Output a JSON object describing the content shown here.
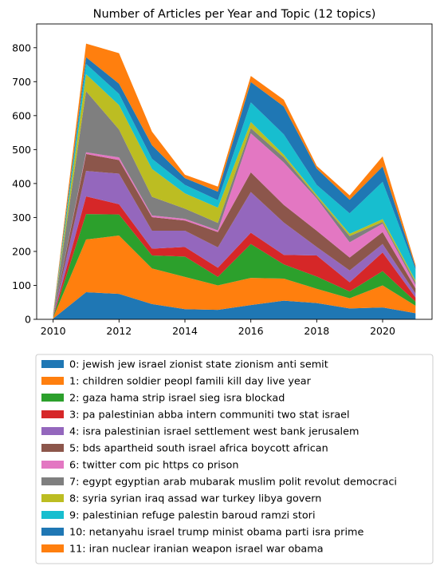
{
  "chart_data": {
    "type": "area",
    "stacked": true,
    "title": "Number of Articles per Year and Topic (12 topics)",
    "xlabel": "",
    "ylabel": "",
    "xlim": [
      2009.5,
      2021.5
    ],
    "ylim": [
      0,
      870
    ],
    "x": [
      2010,
      2011,
      2012,
      2013,
      2014,
      2015,
      2016,
      2017,
      2018,
      2019,
      2020,
      2021
    ],
    "xticks": [
      2010,
      2012,
      2014,
      2016,
      2018,
      2020
    ],
    "yticks": [
      0,
      100,
      200,
      300,
      400,
      500,
      600,
      700,
      800
    ],
    "legend_position": "below",
    "series": [
      {
        "name": "0: jewish jew israel zionist state zionism anti semit",
        "color": "#1f77b4",
        "values": [
          2,
          80,
          75,
          45,
          30,
          28,
          42,
          55,
          48,
          32,
          35,
          18
        ]
      },
      {
        "name": "1: children soldier peopl famili kill day live year",
        "color": "#ff7f0e",
        "values": [
          3,
          155,
          172,
          105,
          95,
          72,
          80,
          65,
          42,
          30,
          65,
          22
        ]
      },
      {
        "name": "2: gaza hama strip israel sieg isra blockad",
        "color": "#2ca02c",
        "values": [
          2,
          75,
          62,
          38,
          60,
          25,
          100,
          42,
          36,
          20,
          42,
          12
        ]
      },
      {
        "name": "3: pa palestinian abba intern communiti two stat israel",
        "color": "#d62728",
        "values": [
          1,
          52,
          30,
          20,
          28,
          27,
          33,
          28,
          62,
          27,
          55,
          12
        ]
      },
      {
        "name": "4: isra palestinian israel settlement west bank jerusalem",
        "color": "#9467bd",
        "values": [
          1,
          75,
          90,
          53,
          48,
          60,
          120,
          95,
          25,
          35,
          25,
          12
        ]
      },
      {
        "name": "5: bds apartheid south israel africa boycott african",
        "color": "#8c564b",
        "values": [
          1,
          50,
          40,
          40,
          30,
          45,
          58,
          52,
          48,
          38,
          35,
          15
        ]
      },
      {
        "name": "6: twitter com pic https co prison",
        "color": "#e377c2",
        "values": [
          0,
          5,
          8,
          5,
          5,
          5,
          115,
          125,
          95,
          45,
          25,
          10
        ]
      },
      {
        "name": "7: egypt egyptian arab mubarak muslim polit revolut democraci",
        "color": "#7f7f7f",
        "values": [
          1,
          180,
          82,
          55,
          30,
          22,
          15,
          15,
          5,
          18,
          5,
          8
        ]
      },
      {
        "name": "8: syria syrian iraq assad war turkey libya govern",
        "color": "#bcbd22",
        "values": [
          1,
          50,
          72,
          82,
          45,
          45,
          18,
          8,
          5,
          7,
          8,
          5
        ]
      },
      {
        "name": "9: palestinian refuge palestin baroud ramzi stori",
        "color": "#17becf",
        "values": [
          1,
          30,
          33,
          30,
          25,
          22,
          58,
          60,
          30,
          60,
          110,
          33
        ]
      },
      {
        "name": "10: netanyahu israel trump minist obama parti isra prime",
        "color": "#1f77b4",
        "values": [
          2,
          20,
          30,
          40,
          20,
          25,
          60,
          82,
          48,
          40,
          45,
          7
        ]
      },
      {
        "name": "11: iran nuclear iranian weapon israel war obama",
        "color": "#ff7f0e",
        "values": [
          3,
          40,
          90,
          40,
          10,
          15,
          18,
          20,
          8,
          13,
          30,
          6
        ]
      }
    ]
  }
}
